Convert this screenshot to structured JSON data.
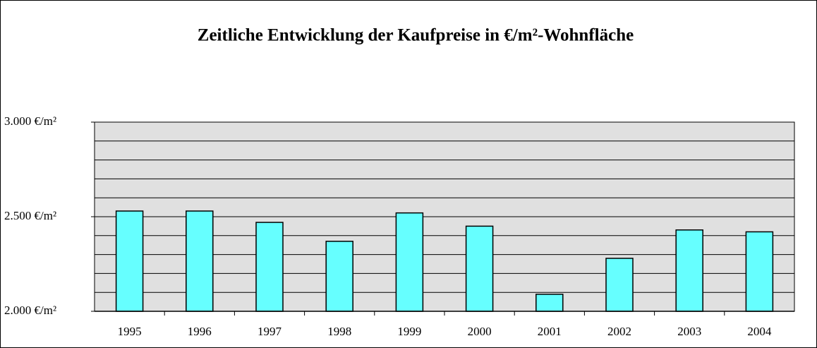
{
  "chart_data": {
    "type": "bar",
    "title": "Zeitliche Entwicklung der Kaufpreise in €/m²-Wohnfläche",
    "categories": [
      "1995",
      "1996",
      "1997",
      "1998",
      "1999",
      "2000",
      "2001",
      "2002",
      "2003",
      "2004"
    ],
    "values": [
      2530,
      2530,
      2470,
      2370,
      2520,
      2450,
      2090,
      2280,
      2430,
      2420
    ],
    "color": "#66ffff",
    "ylim": [
      2000,
      3000
    ],
    "yticks": [
      {
        "value": 2000,
        "label": "2.000 €/m²"
      },
      {
        "value": 2500,
        "label": "2.500 €/m²"
      },
      {
        "value": 3000,
        "label": "3.000 €/m²"
      }
    ],
    "minor_yticks": [
      2100,
      2200,
      2300,
      2400,
      2600,
      2700,
      2800,
      2900
    ],
    "grid": true
  }
}
